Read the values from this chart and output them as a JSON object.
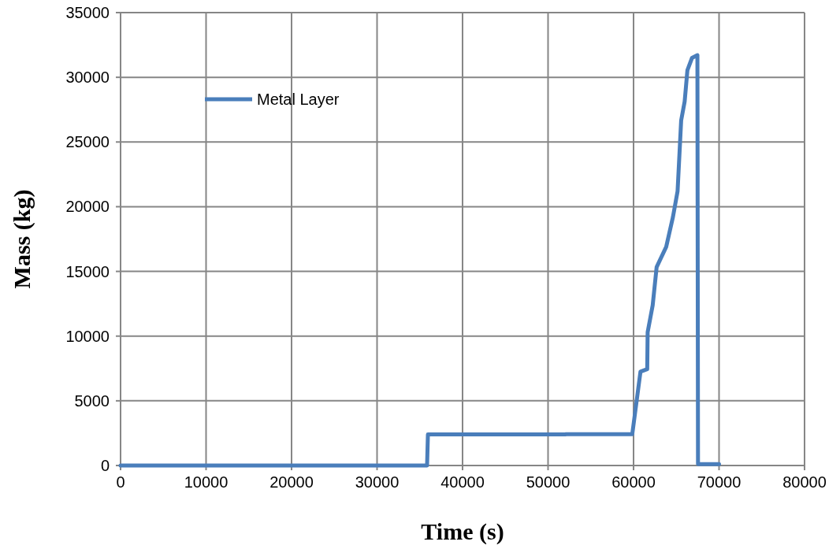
{
  "chart_data": {
    "type": "line",
    "xlabel": "Time (s)",
    "ylabel": "Mass (kg)",
    "xlim": [
      0,
      80000
    ],
    "ylim": [
      0,
      35000
    ],
    "xticks": [
      0,
      10000,
      20000,
      30000,
      40000,
      50000,
      60000,
      70000,
      80000
    ],
    "yticks": [
      0,
      5000,
      10000,
      15000,
      20000,
      25000,
      30000,
      35000
    ],
    "grid": true,
    "legend": "top left",
    "marker": "none",
    "line_style": "solid",
    "series": [
      {
        "name": "Metal Layer",
        "color": "#4a7ebb",
        "x": [
          0,
          35850,
          35950,
          52000,
          52100,
          59850,
          60810,
          61600,
          61650,
          62240,
          62700,
          63820,
          64610,
          65150,
          65570,
          65980,
          66300,
          66840,
          67470,
          67540,
          70000
        ],
        "values": [
          0,
          0,
          2400,
          2400,
          2420,
          2420,
          7250,
          7450,
          10300,
          12390,
          15330,
          16900,
          19210,
          21200,
          26670,
          28140,
          30550,
          31500,
          31710,
          100,
          100
        ]
      }
    ]
  }
}
